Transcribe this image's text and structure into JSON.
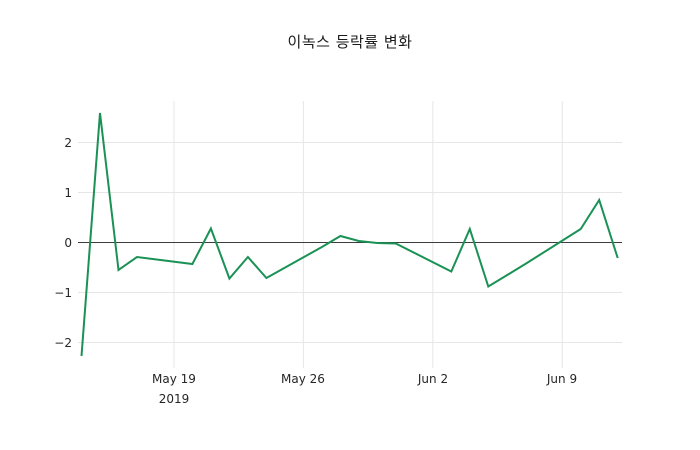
{
  "title": "이녹스 등락률 변화",
  "colors": {
    "background": "#ffffff",
    "line": "#1a9155",
    "grid": "#e6e6e6",
    "zero_line": "#3d3d3d",
    "tick_text": "#262626",
    "title_text": "#1a1a1a"
  },
  "chart_data": {
    "type": "line",
    "title": "이녹스 등락률 변화",
    "xlabel": "",
    "ylabel": "",
    "grid": true,
    "legend": "none",
    "zero_line": true,
    "ylim": [
      -2.51,
      2.83
    ],
    "epoch_date": "2019-05-14",
    "series": [
      {
        "name": "등락률",
        "x": [
          "2019-05-14",
          "2019-05-15",
          "2019-05-16",
          "2019-05-17",
          "2019-05-20",
          "2019-05-21",
          "2019-05-22",
          "2019-05-23",
          "2019-05-24",
          "2019-05-27",
          "2019-05-28",
          "2019-05-29",
          "2019-05-30",
          "2019-05-31",
          "2019-06-03",
          "2019-06-04",
          "2019-06-05",
          "2019-06-07",
          "2019-06-10",
          "2019-06-11",
          "2019-06-12"
        ],
        "values": [
          -2.27,
          2.59,
          -0.55,
          -0.29,
          -0.43,
          0.28,
          -0.72,
          -0.29,
          -0.71,
          -0.09,
          0.13,
          0.03,
          -0.01,
          -0.02,
          -0.58,
          0.27,
          -0.88,
          -0.43,
          0.27,
          0.85,
          -0.31
        ]
      }
    ],
    "x_ticks": [
      {
        "date": "2019-05-19",
        "label": "May 19",
        "sublabel": "2019"
      },
      {
        "date": "2019-05-26",
        "label": "May 26",
        "sublabel": ""
      },
      {
        "date": "2019-06-02",
        "label": "Jun 2",
        "sublabel": ""
      },
      {
        "date": "2019-06-09",
        "label": "Jun 9",
        "sublabel": ""
      }
    ],
    "y_ticks": [
      {
        "value": 2,
        "label": "2"
      },
      {
        "value": 1,
        "label": "1"
      },
      {
        "value": 0,
        "label": "0"
      },
      {
        "value": -1,
        "label": "−1"
      },
      {
        "value": -2,
        "label": "−2"
      }
    ]
  }
}
